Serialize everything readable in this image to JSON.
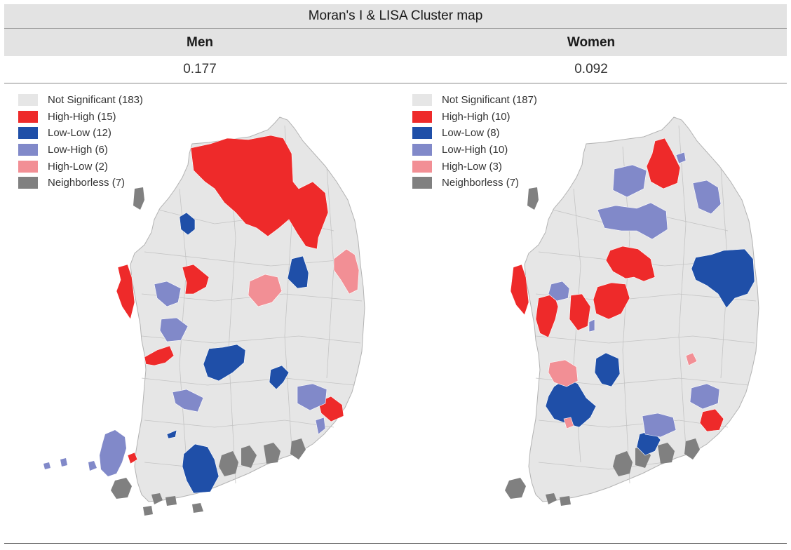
{
  "table": {
    "title": "Moran's I & LISA Cluster map",
    "columns": [
      {
        "header": "Men",
        "moran_i": "0.177"
      },
      {
        "header": "Women",
        "moran_i": "0.092"
      }
    ]
  },
  "legend_colors": {
    "not_significant": "#e6e6e6",
    "high_high": "#ee2a2a",
    "low_low": "#1f4fa8",
    "low_high": "#8189c9",
    "high_low": "#f28f95",
    "neighborless": "#808080"
  },
  "panels": [
    {
      "legend": [
        {
          "label": "Not Significant (183)",
          "color": "#e6e6e6"
        },
        {
          "label": "High-High (15)",
          "color": "#ee2a2a"
        },
        {
          "label": "Low-Low (12)",
          "color": "#1f4fa8"
        },
        {
          "label": "Low-High (6)",
          "color": "#8189c9"
        },
        {
          "label": "High-Low (2)",
          "color": "#f28f95"
        },
        {
          "label": "Neighborless (7)",
          "color": "#808080"
        }
      ]
    },
    {
      "legend": [
        {
          "label": "Not Significant (187)",
          "color": "#e6e6e6"
        },
        {
          "label": "High-High (10)",
          "color": "#ee2a2a"
        },
        {
          "label": "Low-Low (8)",
          "color": "#1f4fa8"
        },
        {
          "label": "Low-High (10)",
          "color": "#8189c9"
        },
        {
          "label": "High-Low (3)",
          "color": "#f28f95"
        },
        {
          "label": "Neighborless (7)",
          "color": "#808080"
        }
      ]
    }
  ]
}
